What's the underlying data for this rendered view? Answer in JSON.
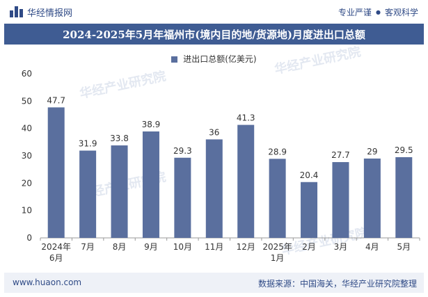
{
  "header": {
    "brand": "华经情报网",
    "tagline_left": "专业严谨",
    "tagline_right": "客观科学"
  },
  "title": "2024-2025年5月年福州市(境内目的地/货源地)月度进出口总额",
  "legend_label": "进出口总额(亿美元)",
  "watermarks": [
    "华经产业研究院",
    "www.huaon.com"
  ],
  "footer": {
    "url": "www.huaon.com",
    "source": "数据来源：中国海关，华经产业研究院整理"
  },
  "colors": {
    "bar": "#5a6f9e",
    "title_bg": "#3f5c93",
    "footer_bg": "#eef1f7"
  },
  "chart_data": {
    "type": "bar",
    "title": "2024-2025年5月年福州市(境内目的地/货源地)月度进出口总额",
    "categories": [
      "2024年\n6月",
      "7月",
      "8月",
      "9月",
      "10月",
      "11月",
      "12月",
      "2025年\n1月",
      "2月",
      "3月",
      "4月",
      "5月"
    ],
    "series": [
      {
        "name": "进出口总额(亿美元)",
        "values": [
          47.7,
          31.9,
          33.8,
          38.9,
          29.3,
          36,
          41.3,
          28.9,
          20.4,
          27.7,
          29,
          29.5
        ]
      }
    ],
    "value_labels": [
      "47.7",
      "31.9",
      "33.8",
      "38.9",
      "29.3",
      "36",
      "41.3",
      "28.9",
      "20.4",
      "27.7",
      "29",
      "29.5"
    ],
    "y_ticks": [
      "0",
      "10",
      "20",
      "30",
      "40",
      "50",
      "60"
    ],
    "ylim": [
      0,
      60
    ],
    "xlabel": "",
    "ylabel": "",
    "legend_position": "top-center",
    "grid": false
  }
}
